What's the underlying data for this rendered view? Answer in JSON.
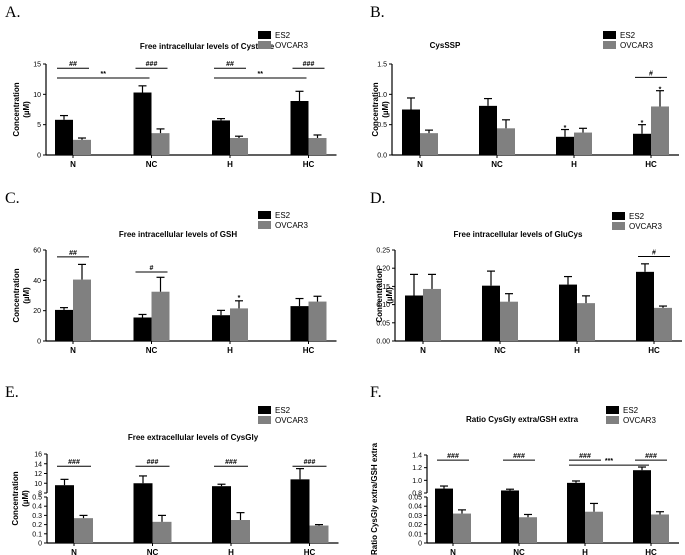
{
  "figure": {
    "legend": [
      "ES2",
      "OVCAR3"
    ],
    "categories": [
      "N",
      "NC",
      "H",
      "HC"
    ]
  },
  "colors": {
    "ES2": "#000000",
    "OVCAR3": "#808080",
    "axis": "#000000"
  },
  "chart_data": [
    {
      "panel": "A.",
      "type": "bar",
      "title": "Free intracellular levels of Cysteine",
      "ylabel": [
        "Concentration",
        "(µM)"
      ],
      "categories": [
        "N",
        "NC",
        "H",
        "HC"
      ],
      "ylim": [
        0,
        15
      ],
      "yticks": [
        0,
        5,
        10,
        15
      ],
      "series": [
        {
          "name": "ES2",
          "values": [
            5.8,
            10.3,
            5.7,
            8.9
          ],
          "errors": [
            0.7,
            1.1,
            0.3,
            1.6
          ]
        },
        {
          "name": "OVCAR3",
          "values": [
            2.5,
            3.6,
            2.8,
            2.8
          ],
          "errors": [
            0.3,
            0.7,
            0.3,
            0.5
          ]
        }
      ],
      "annotations": [
        {
          "text": "##",
          "between": [
            [
              0,
              0
            ],
            [
              0,
              1
            ]
          ],
          "y": 14.3
        },
        {
          "text": "###",
          "between": [
            [
              1,
              0
            ],
            [
              1,
              1
            ]
          ],
          "y": 14.3
        },
        {
          "text": "##",
          "between": [
            [
              2,
              0
            ],
            [
              2,
              1
            ]
          ],
          "y": 14.3
        },
        {
          "text": "###",
          "between": [
            [
              3,
              0
            ],
            [
              3,
              1
            ]
          ],
          "y": 14.3
        },
        {
          "text": "**",
          "between": [
            [
              0,
              0
            ],
            [
              1,
              0
            ]
          ],
          "y": 12.7
        },
        {
          "text": "**",
          "between": [
            [
              2,
              0
            ],
            [
              3,
              0
            ]
          ],
          "y": 12.7
        }
      ]
    },
    {
      "panel": "B.",
      "type": "bar",
      "title": "CysSSP",
      "ylabel": [
        "Concentration",
        "(µM)"
      ],
      "categories": [
        "N",
        "NC",
        "H",
        "HC"
      ],
      "ylim": [
        0,
        1.5
      ],
      "yticks": [
        0,
        0.5,
        1.0,
        1.5
      ],
      "series": [
        {
          "name": "ES2",
          "values": [
            0.75,
            0.81,
            0.3,
            0.35
          ],
          "errors": [
            0.19,
            0.12,
            0.12,
            0.15
          ]
        },
        {
          "name": "OVCAR3",
          "values": [
            0.36,
            0.44,
            0.37,
            0.8
          ],
          "errors": [
            0.05,
            0.14,
            0.07,
            0.26
          ]
        }
      ],
      "annotations": [
        {
          "text": "#",
          "between": [
            [
              3,
              0
            ],
            [
              3,
              1
            ]
          ],
          "y": 1.28
        },
        {
          "text": "*",
          "point": [
            2,
            0
          ],
          "y": 0.46
        },
        {
          "text": "*",
          "point": [
            3,
            0
          ],
          "y": 0.54
        },
        {
          "text": "*",
          "point": [
            3,
            1
          ],
          "y": 1.1
        }
      ]
    },
    {
      "panel": "C.",
      "type": "bar",
      "title": "Free intracellular levels of GSH",
      "ylabel": [
        "Concentration",
        "(µM)"
      ],
      "categories": [
        "N",
        "NC",
        "H",
        "HC"
      ],
      "ylim": [
        0,
        60
      ],
      "yticks": [
        0,
        20,
        40,
        60
      ],
      "series": [
        {
          "name": "ES2",
          "values": [
            20.5,
            15.5,
            17.0,
            23.0
          ],
          "errors": [
            1.5,
            2.0,
            3.2,
            5.0
          ]
        },
        {
          "name": "OVCAR3",
          "values": [
            40.5,
            32.5,
            21.5,
            26.0
          ],
          "errors": [
            10.0,
            9.5,
            5.0,
            3.5
          ]
        }
      ],
      "annotations": [
        {
          "text": "##",
          "between": [
            [
              0,
              0
            ],
            [
              0,
              1
            ]
          ],
          "y": 55.5
        },
        {
          "text": "#",
          "between": [
            [
              1,
              0
            ],
            [
              1,
              1
            ]
          ],
          "y": 45.5
        },
        {
          "text": "*",
          "point": [
            2,
            1
          ],
          "y": 29.0
        }
      ]
    },
    {
      "panel": "D.",
      "type": "bar",
      "title": "Free intracellular levels of GluCys",
      "ylabel": [
        "Concentration",
        "(µM)"
      ],
      "categories": [
        "N",
        "NC",
        "H",
        "HC"
      ],
      "ylim": [
        0,
        0.25
      ],
      "yticks": [
        0,
        0.05,
        0.1,
        0.15,
        0.2,
        0.25
      ],
      "series": [
        {
          "name": "ES2",
          "values": [
            0.125,
            0.152,
            0.155,
            0.19
          ],
          "errors": [
            0.058,
            0.04,
            0.022,
            0.022
          ]
        },
        {
          "name": "OVCAR3",
          "values": [
            0.143,
            0.108,
            0.104,
            0.091
          ],
          "errors": [
            0.04,
            0.022,
            0.02,
            0.005
          ]
        }
      ],
      "annotations": [
        {
          "text": "#",
          "between": [
            [
              3,
              0
            ],
            [
              3,
              1
            ]
          ],
          "y": 0.232
        }
      ]
    },
    {
      "panel": "E.",
      "type": "bar",
      "title": "Free extracellular levels of CysGly",
      "ylabel": [
        "Concentration",
        "(µM)"
      ],
      "categories": [
        "N",
        "NC",
        "H",
        "HC"
      ],
      "broken_axis": true,
      "upper_ylim": [
        8,
        16
      ],
      "upper_yticks": [
        8,
        10,
        12,
        14,
        16
      ],
      "lower_ylim": [
        0,
        0.5
      ],
      "lower_yticks": [
        0,
        0.1,
        0.2,
        0.3,
        0.4,
        0.5
      ],
      "series": [
        {
          "name": "ES2",
          "values": [
            9.6,
            10.0,
            9.4,
            10.8
          ],
          "errors": [
            1.2,
            1.5,
            0.4,
            2.2
          ]
        },
        {
          "name": "OVCAR3",
          "values": [
            0.27,
            0.23,
            0.25,
            0.19
          ],
          "errors": [
            0.03,
            0.07,
            0.08,
            0.01
          ]
        }
      ],
      "annotations": [
        {
          "text": "###",
          "between": [
            [
              0,
              0
            ],
            [
              0,
              1
            ]
          ],
          "y": 13.5
        },
        {
          "text": "###",
          "between": [
            [
              1,
              0
            ],
            [
              1,
              1
            ]
          ],
          "y": 13.5
        },
        {
          "text": "###",
          "between": [
            [
              2,
              0
            ],
            [
              2,
              1
            ]
          ],
          "y": 13.5
        },
        {
          "text": "###",
          "between": [
            [
              3,
              0
            ],
            [
              3,
              1
            ]
          ],
          "y": 13.5
        }
      ]
    },
    {
      "panel": "F.",
      "type": "bar",
      "title": "Ratio CysGly extra/GSH extra",
      "ylabel": [
        "Ratio CysGly extra/GSH extra"
      ],
      "categories": [
        "N",
        "NC",
        "H",
        "HC"
      ],
      "broken_axis": true,
      "upper_ylim": [
        0.8,
        1.4
      ],
      "upper_yticks": [
        0.8,
        1.0,
        1.2,
        1.4
      ],
      "lower_ylim": [
        0,
        0.05
      ],
      "lower_yticks": [
        0,
        0.01,
        0.02,
        0.03,
        0.04,
        0.05
      ],
      "series": [
        {
          "name": "ES2",
          "values": [
            0.87,
            0.84,
            0.96,
            1.16
          ],
          "errors": [
            0.04,
            0.02,
            0.03,
            0.05
          ]
        },
        {
          "name": "OVCAR3",
          "values": [
            0.032,
            0.028,
            0.034,
            0.031
          ],
          "errors": [
            0.004,
            0.003,
            0.009,
            0.003
          ]
        }
      ],
      "annotations": [
        {
          "text": "###",
          "between": [
            [
              0,
              0
            ],
            [
              0,
              1
            ]
          ],
          "y": 1.32
        },
        {
          "text": "###",
          "between": [
            [
              1,
              0
            ],
            [
              1,
              1
            ]
          ],
          "y": 1.32
        },
        {
          "text": "###",
          "between": [
            [
              2,
              0
            ],
            [
              2,
              1
            ]
          ],
          "y": 1.32
        },
        {
          "text": "###",
          "between": [
            [
              3,
              0
            ],
            [
              3,
              1
            ]
          ],
          "y": 1.32
        },
        {
          "text": "***",
          "between": [
            [
              2,
              0
            ],
            [
              3,
              0
            ]
          ],
          "y": 1.24
        }
      ]
    }
  ]
}
